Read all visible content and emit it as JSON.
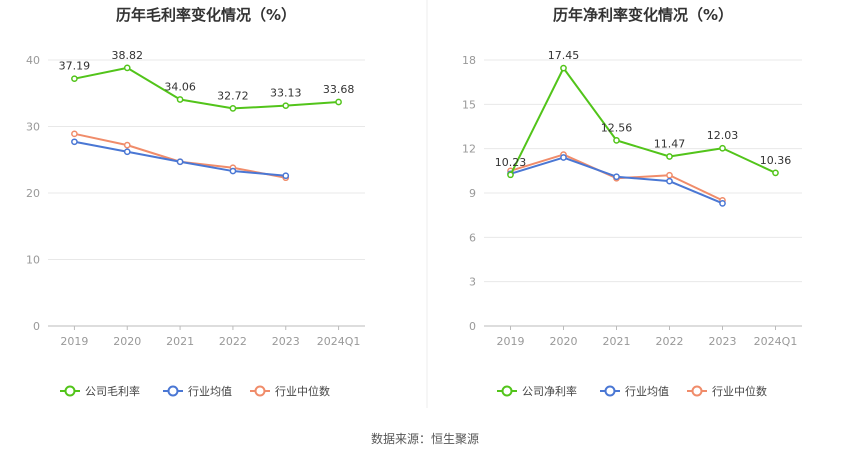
{
  "chart_data": [
    {
      "type": "line",
      "title": "历年毛利率变化情况（%）",
      "categories": [
        "2019",
        "2020",
        "2021",
        "2022",
        "2023",
        "2024Q1"
      ],
      "ylim": [
        0,
        40
      ],
      "yticks": [
        0,
        10,
        20,
        30,
        40
      ],
      "grid": true,
      "legend_position": "bottom",
      "series": [
        {
          "name": "公司毛利率",
          "values": [
            37.19,
            38.82,
            34.06,
            32.72,
            33.13,
            33.68
          ],
          "labels": [
            "37.19",
            "38.82",
            "34.06",
            "32.72",
            "33.13",
            "33.68"
          ],
          "color": "#52c41a"
        },
        {
          "name": "行业均值",
          "values": [
            27.7,
            26.2,
            24.7,
            23.3,
            22.6,
            null
          ],
          "color": "#4a77d4"
        },
        {
          "name": "行业中位数",
          "values": [
            28.9,
            27.2,
            24.7,
            23.8,
            22.3,
            null
          ],
          "color": "#f08c6a"
        }
      ]
    },
    {
      "type": "line",
      "title": "历年净利率变化情况（%）",
      "categories": [
        "2019",
        "2020",
        "2021",
        "2022",
        "2023",
        "2024Q1"
      ],
      "ylim": [
        0,
        18
      ],
      "yticks": [
        0,
        3,
        6,
        9,
        12,
        15,
        18
      ],
      "grid": true,
      "legend_position": "bottom",
      "series": [
        {
          "name": "公司净利率",
          "values": [
            10.23,
            17.45,
            12.56,
            11.47,
            12.03,
            10.36
          ],
          "labels": [
            "10.23",
            "17.45",
            "12.56",
            "11.47",
            "12.03",
            "10.36"
          ],
          "color": "#52c41a"
        },
        {
          "name": "行业均值",
          "values": [
            10.3,
            11.4,
            10.1,
            9.8,
            8.3,
            null
          ],
          "color": "#4a77d4"
        },
        {
          "name": "行业中位数",
          "values": [
            10.5,
            11.6,
            10.0,
            10.2,
            8.5,
            null
          ],
          "color": "#f08c6a"
        }
      ]
    }
  ],
  "source": "数据来源：恒生聚源"
}
